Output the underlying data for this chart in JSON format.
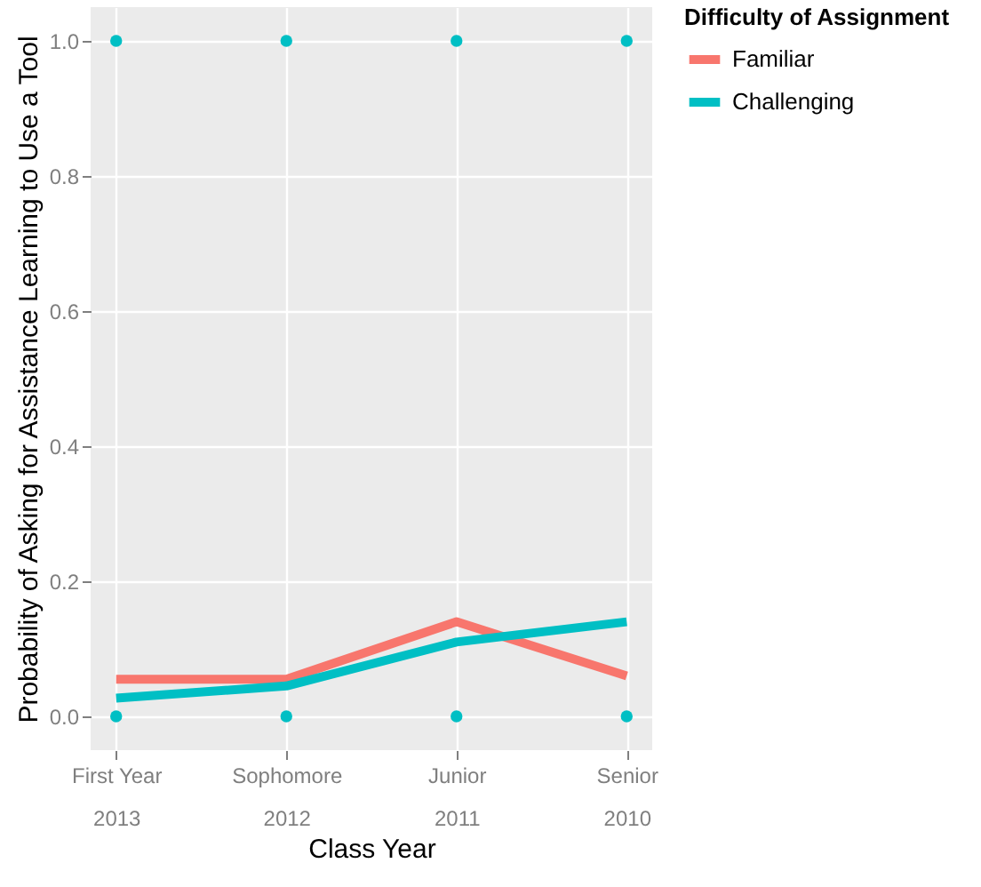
{
  "chart_data": {
    "type": "line",
    "xlabel": "Class Year",
    "ylabel": "Probability of Asking for Assistance Learning to Use a Tool",
    "legend_title": "Difficulty of Assignment",
    "categories": [
      "First Year\n2013",
      "Sophomore\n2012",
      "Junior\n2011",
      "Senior\n2010"
    ],
    "series": [
      {
        "name": "Familiar",
        "color": "#f8766d",
        "values": [
          0.055,
          0.055,
          0.14,
          0.06
        ]
      },
      {
        "name": "Challenging",
        "color": "#00bfc4",
        "values": [
          0.027,
          0.045,
          0.11,
          0.14
        ]
      },
      {
        "type": "scatter",
        "marker": "circle",
        "color": "#00bfc4",
        "x": [
          "First Year\n2013",
          "Sophomore\n2012",
          "Junior\n2011",
          "Senior\n2010",
          "First Year\n2013",
          "Sophomore\n2012",
          "Junior\n2011",
          "Senior\n2010"
        ],
        "values": [
          0,
          0,
          0,
          0,
          1,
          1,
          1,
          1
        ]
      }
    ],
    "ylim": [
      -0.05,
      1.05
    ],
    "yticks": [
      {
        "value": 0,
        "label": "0.0"
      },
      0.2,
      0.4,
      0.6,
      0.8,
      {
        "value": 1,
        "label": "1.0"
      }
    ],
    "grid": true,
    "legend": "right",
    "line_style": "solid"
  }
}
